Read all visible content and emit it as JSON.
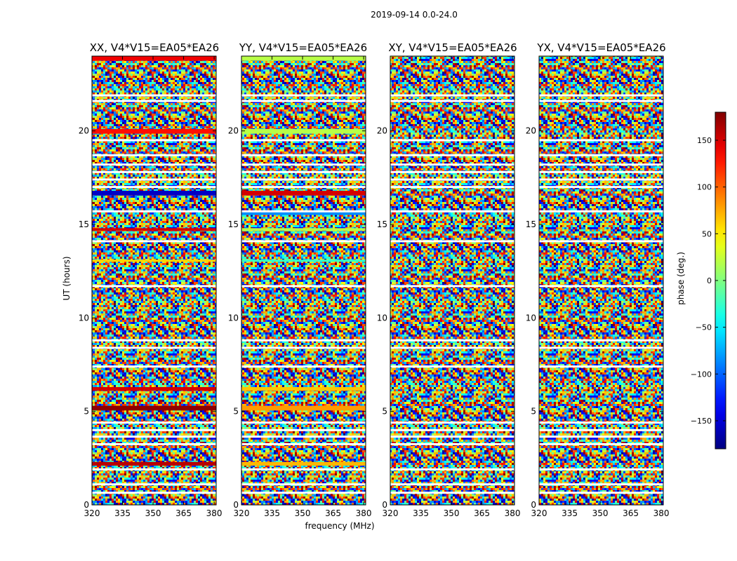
{
  "suptitle": "2019-09-14 0.0-24.0",
  "xlabel": "frequency (MHz)",
  "ylabel": "UT (hours)",
  "colorbar_label": "phase (deg.)",
  "colorbar_ticks": [
    "150",
    "100",
    "50",
    "0",
    "−50",
    "−100",
    "−150"
  ],
  "colors": {
    "background": "#ffffff",
    "flagged": "#ffffff",
    "axes": "#000000"
  },
  "chart_data": {
    "type": "heatmap",
    "title": "2019-09-14 0.0-24.0",
    "xlabel": "frequency (MHz)",
    "ylabel": "UT (hours)",
    "xlim": [
      320,
      381
    ],
    "ylim": [
      0,
      24
    ],
    "x_ticks": [
      320,
      335,
      350,
      365,
      380
    ],
    "y_ticks": [
      0,
      5,
      10,
      15,
      20
    ],
    "colorbar": {
      "label": "phase (deg.)",
      "range": [
        -180,
        180
      ],
      "ticks": [
        150,
        100,
        50,
        0,
        -50,
        -100,
        -150
      ],
      "colormap": "jet"
    },
    "flagged_time_hours": [
      0.65,
      1.1,
      1.9,
      3.25,
      3.65,
      4.0,
      4.4,
      7.4,
      8.4,
      8.8,
      11.7,
      14.1,
      15.7,
      17.0,
      17.4,
      17.8,
      18.2,
      18.7,
      19.5,
      21.6,
      21.9
    ],
    "panels": [
      {
        "title": "XX, V4*V15=EA05*EA26",
        "coherent_bands": [
          {
            "t_start": 23.75,
            "t_end": 24.0,
            "phase": 140
          },
          {
            "t_start": 19.85,
            "t_end": 20.1,
            "phase": 130
          },
          {
            "t_start": 16.55,
            "t_end": 16.8,
            "phase": -155
          },
          {
            "t_start": 14.65,
            "t_end": 14.8,
            "phase": 150
          },
          {
            "t_start": 13.0,
            "t_end": 13.12,
            "phase": 60
          },
          {
            "t_start": 6.1,
            "t_end": 6.3,
            "phase": 150
          },
          {
            "t_start": 5.05,
            "t_end": 5.3,
            "phase": 175
          },
          {
            "t_start": 2.1,
            "t_end": 2.3,
            "phase": 160
          }
        ]
      },
      {
        "title": "YY, V4*V15=EA05*EA26",
        "coherent_bands": [
          {
            "t_start": 23.75,
            "t_end": 24.0,
            "phase": 20
          },
          {
            "t_start": 19.85,
            "t_end": 20.1,
            "phase": 20
          },
          {
            "t_start": 16.55,
            "t_end": 16.8,
            "phase": 150
          },
          {
            "t_start": 15.5,
            "t_end": 15.65,
            "phase": -85
          },
          {
            "t_start": 14.65,
            "t_end": 14.8,
            "phase": 20
          },
          {
            "t_start": 13.0,
            "t_end": 13.12,
            "phase": -25
          },
          {
            "t_start": 6.1,
            "t_end": 6.3,
            "phase": 65
          },
          {
            "t_start": 5.05,
            "t_end": 5.3,
            "phase": 80
          },
          {
            "t_start": 2.1,
            "t_end": 2.3,
            "phase": 70
          }
        ]
      },
      {
        "title": "XY, V4*V15=EA05*EA26",
        "coherent_bands": []
      },
      {
        "title": "YX, V4*V15=EA05*EA26",
        "coherent_bands": []
      }
    ]
  }
}
